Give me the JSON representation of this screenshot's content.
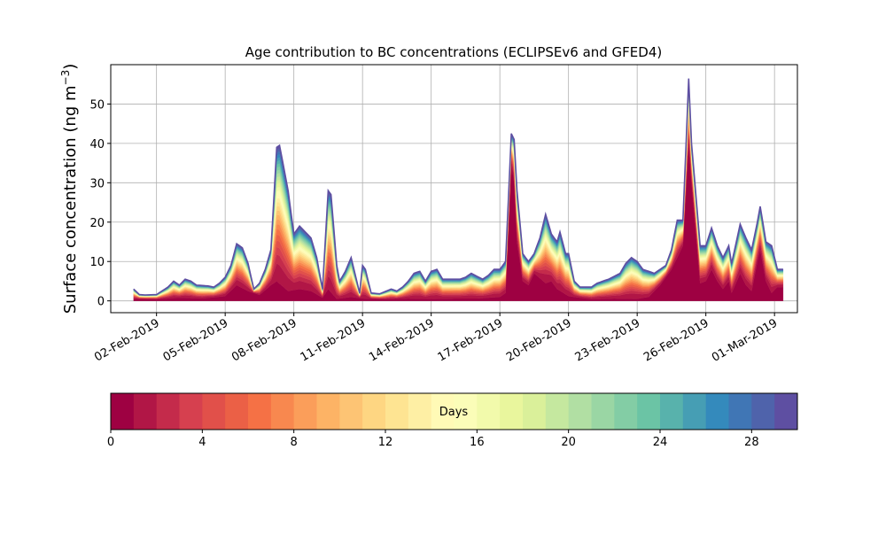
{
  "chart_data": {
    "type": "area",
    "title": "Age contribution to BC concentrations (ECLIPSEv6 and GFED4)",
    "xlabel": "",
    "ylabel_text": "Surface concentration (ng m",
    "ylabel_sup": "−3",
    "ylabel_close": ")",
    "ylim": [
      -3,
      60
    ],
    "xlim": [
      "2019-01-31",
      "2019-03-02"
    ],
    "grid": true,
    "y_ticks": [
      0,
      10,
      20,
      30,
      40,
      50
    ],
    "x_ticks": [
      {
        "date": "2019-02-02",
        "label": "02-Feb-2019"
      },
      {
        "date": "2019-02-05",
        "label": "05-Feb-2019"
      },
      {
        "date": "2019-02-08",
        "label": "08-Feb-2019"
      },
      {
        "date": "2019-02-11",
        "label": "11-Feb-2019"
      },
      {
        "date": "2019-02-14",
        "label": "14-Feb-2019"
      },
      {
        "date": "2019-02-17",
        "label": "17-Feb-2019"
      },
      {
        "date": "2019-02-20",
        "label": "20-Feb-2019"
      },
      {
        "date": "2019-02-23",
        "label": "23-Feb-2019"
      },
      {
        "date": "2019-02-26",
        "label": "26-Feb-2019"
      },
      {
        "date": "2019-03-01",
        "label": "01-Mar-2019"
      }
    ],
    "total": [
      [
        "2019-02-01T00",
        3
      ],
      [
        "2019-02-01T06",
        1.6
      ],
      [
        "2019-02-01T12",
        1.5
      ],
      [
        "2019-02-02T00",
        1.6
      ],
      [
        "2019-02-02T12",
        3.5
      ],
      [
        "2019-02-02T18",
        5
      ],
      [
        "2019-02-03T00",
        4
      ],
      [
        "2019-02-03T06",
        5.5
      ],
      [
        "2019-02-03T12",
        5
      ],
      [
        "2019-02-03T18",
        4
      ],
      [
        "2019-02-04T06",
        3.8
      ],
      [
        "2019-02-04T12",
        3.5
      ],
      [
        "2019-02-04T18",
        4.5
      ],
      [
        "2019-02-05T00",
        6
      ],
      [
        "2019-02-05T06",
        9
      ],
      [
        "2019-02-05T12",
        14.5
      ],
      [
        "2019-02-05T18",
        13.5
      ],
      [
        "2019-02-06T00",
        9.5
      ],
      [
        "2019-02-06T06",
        3
      ],
      [
        "2019-02-06T12",
        4.5
      ],
      [
        "2019-02-06T18",
        8
      ],
      [
        "2019-02-07T00",
        13
      ],
      [
        "2019-02-07T06",
        39
      ],
      [
        "2019-02-07T09",
        39.5
      ],
      [
        "2019-02-07T18",
        28
      ],
      [
        "2019-02-08T00",
        17
      ],
      [
        "2019-02-08T06",
        19
      ],
      [
        "2019-02-08T12",
        17.5
      ],
      [
        "2019-02-08T18",
        16
      ],
      [
        "2019-02-09T00",
        11
      ],
      [
        "2019-02-09T06",
        3
      ],
      [
        "2019-02-09T12",
        28
      ],
      [
        "2019-02-09T15",
        27
      ],
      [
        "2019-02-09T21",
        9
      ],
      [
        "2019-02-10T00",
        5
      ],
      [
        "2019-02-10T06",
        7.5
      ],
      [
        "2019-02-10T12",
        11
      ],
      [
        "2019-02-10T18",
        5
      ],
      [
        "2019-02-10T21",
        2
      ],
      [
        "2019-02-11T00",
        9
      ],
      [
        "2019-02-11T03",
        8
      ],
      [
        "2019-02-11T09",
        2
      ],
      [
        "2019-02-11T18",
        1.8
      ],
      [
        "2019-02-12T06",
        3
      ],
      [
        "2019-02-12T12",
        2.5
      ],
      [
        "2019-02-12T18",
        3.5
      ],
      [
        "2019-02-13T00",
        5
      ],
      [
        "2019-02-13T06",
        7
      ],
      [
        "2019-02-13T12",
        7.5
      ],
      [
        "2019-02-13T18",
        5
      ],
      [
        "2019-02-14T00",
        7.5
      ],
      [
        "2019-02-14T06",
        8
      ],
      [
        "2019-02-14T12",
        5.5
      ],
      [
        "2019-02-14T18",
        5.5
      ],
      [
        "2019-02-15T06",
        5.5
      ],
      [
        "2019-02-15T12",
        6
      ],
      [
        "2019-02-15T18",
        7
      ],
      [
        "2019-02-16T06",
        5.5
      ],
      [
        "2019-02-16T12",
        6.5
      ],
      [
        "2019-02-16T18",
        8
      ],
      [
        "2019-02-17T00",
        8
      ],
      [
        "2019-02-17T06",
        10
      ],
      [
        "2019-02-17T12",
        42.5
      ],
      [
        "2019-02-17T15",
        41
      ],
      [
        "2019-02-17T18",
        28
      ],
      [
        "2019-02-18T00",
        12
      ],
      [
        "2019-02-18T06",
        10
      ],
      [
        "2019-02-18T12",
        12
      ],
      [
        "2019-02-18T18",
        16
      ],
      [
        "2019-02-19T00",
        22
      ],
      [
        "2019-02-19T06",
        17
      ],
      [
        "2019-02-19T12",
        15
      ],
      [
        "2019-02-19T15",
        17.5
      ],
      [
        "2019-02-19T21",
        12
      ],
      [
        "2019-02-20T00",
        12
      ],
      [
        "2019-02-20T06",
        5
      ],
      [
        "2019-02-20T12",
        3.5
      ],
      [
        "2019-02-21T00",
        3.5
      ],
      [
        "2019-02-21T06",
        4.5
      ],
      [
        "2019-02-21T12",
        5
      ],
      [
        "2019-02-21T18",
        5.5
      ],
      [
        "2019-02-22T06",
        7
      ],
      [
        "2019-02-22T12",
        9.5
      ],
      [
        "2019-02-22T18",
        11
      ],
      [
        "2019-02-23T00",
        10
      ],
      [
        "2019-02-23T06",
        8
      ],
      [
        "2019-02-23T18",
        7
      ],
      [
        "2019-02-24T06",
        9
      ],
      [
        "2019-02-24T12",
        13
      ],
      [
        "2019-02-24T18",
        20.5
      ],
      [
        "2019-02-25T00",
        20.5
      ],
      [
        "2019-02-25T06",
        56.5
      ],
      [
        "2019-02-25T09",
        40
      ],
      [
        "2019-02-25T18",
        14
      ],
      [
        "2019-02-26T00",
        14
      ],
      [
        "2019-02-26T06",
        18.5
      ],
      [
        "2019-02-26T12",
        14
      ],
      [
        "2019-02-26T18",
        11
      ],
      [
        "2019-02-27T00",
        14
      ],
      [
        "2019-02-27T03",
        9.5
      ],
      [
        "2019-02-27T12",
        19.5
      ],
      [
        "2019-02-27T18",
        16
      ],
      [
        "2019-02-28T00",
        13
      ],
      [
        "2019-02-28T06",
        20
      ],
      [
        "2019-02-28T09",
        24
      ],
      [
        "2019-02-28T15",
        15
      ],
      [
        "2019-02-28T21",
        14
      ],
      [
        "2019-03-01T03",
        8
      ],
      [
        "2019-03-01T09",
        8
      ]
    ],
    "fresh": [
      [
        "2019-02-01T00",
        0.5
      ],
      [
        "2019-02-02T00",
        0.4
      ],
      [
        "2019-02-03T00",
        0.8
      ],
      [
        "2019-02-04T00",
        0.6
      ],
      [
        "2019-02-05T00",
        1.2
      ],
      [
        "2019-02-05T12",
        4
      ],
      [
        "2019-02-06T00",
        2.5
      ],
      [
        "2019-02-06T12",
        1.5
      ],
      [
        "2019-02-07T00",
        4
      ],
      [
        "2019-02-07T06",
        5
      ],
      [
        "2019-02-07T18",
        2.5
      ],
      [
        "2019-02-08T06",
        3
      ],
      [
        "2019-02-08T18",
        2.5
      ],
      [
        "2019-02-09T06",
        0.8
      ],
      [
        "2019-02-09T12",
        3
      ],
      [
        "2019-02-09T21",
        0.5
      ],
      [
        "2019-02-10T12",
        1
      ],
      [
        "2019-02-11T00",
        0.6
      ],
      [
        "2019-02-12T00",
        0.4
      ],
      [
        "2019-02-13T00",
        0.6
      ],
      [
        "2019-02-14T00",
        0.5
      ],
      [
        "2019-02-15T00",
        0.6
      ],
      [
        "2019-02-16T00",
        0.6
      ],
      [
        "2019-02-17T00",
        1
      ],
      [
        "2019-02-17T06",
        2
      ],
      [
        "2019-02-17T12",
        35
      ],
      [
        "2019-02-17T15",
        30
      ],
      [
        "2019-02-17T18",
        15
      ],
      [
        "2019-02-18T00",
        5
      ],
      [
        "2019-02-18T06",
        4
      ],
      [
        "2019-02-18T12",
        7
      ],
      [
        "2019-02-19T00",
        4.5
      ],
      [
        "2019-02-19T06",
        5
      ],
      [
        "2019-02-19T12",
        3
      ],
      [
        "2019-02-20T00",
        1.2
      ],
      [
        "2019-02-21T00",
        0.4
      ],
      [
        "2019-02-22T00",
        0.6
      ],
      [
        "2019-02-23T00",
        0.5
      ],
      [
        "2019-02-23T12",
        1
      ],
      [
        "2019-02-24T00",
        4
      ],
      [
        "2019-02-24T12",
        8
      ],
      [
        "2019-02-24T18",
        11
      ],
      [
        "2019-02-25T00",
        14
      ],
      [
        "2019-02-25T06",
        40
      ],
      [
        "2019-02-25T09",
        30
      ],
      [
        "2019-02-25T18",
        4.5
      ],
      [
        "2019-02-26T00",
        5
      ],
      [
        "2019-02-26T06",
        8
      ],
      [
        "2019-02-26T12",
        5
      ],
      [
        "2019-02-26T18",
        3
      ],
      [
        "2019-02-27T00",
        5
      ],
      [
        "2019-02-27T03",
        2
      ],
      [
        "2019-02-27T12",
        7
      ],
      [
        "2019-02-27T18",
        4
      ],
      [
        "2019-02-28T00",
        2.5
      ],
      [
        "2019-02-28T06",
        10
      ],
      [
        "2019-02-28T09",
        13
      ],
      [
        "2019-02-28T15",
        5
      ],
      [
        "2019-02-28T21",
        2
      ],
      [
        "2019-03-01T03",
        3.5
      ],
      [
        "2019-03-01T09",
        3.5
      ]
    ]
  },
  "colorbar": {
    "label": "Days",
    "min": 0,
    "max": 30,
    "bins": 30,
    "ticks": [
      0,
      4,
      8,
      12,
      16,
      20,
      24,
      28
    ],
    "colors": [
      "#9e0142",
      "#d53e4f",
      "#f46d43",
      "#fdae61",
      "#fee08b",
      "#ffffbf",
      "#e6f598",
      "#abdda4",
      "#66c2a5",
      "#3288bd",
      "#5e4fa2"
    ]
  }
}
